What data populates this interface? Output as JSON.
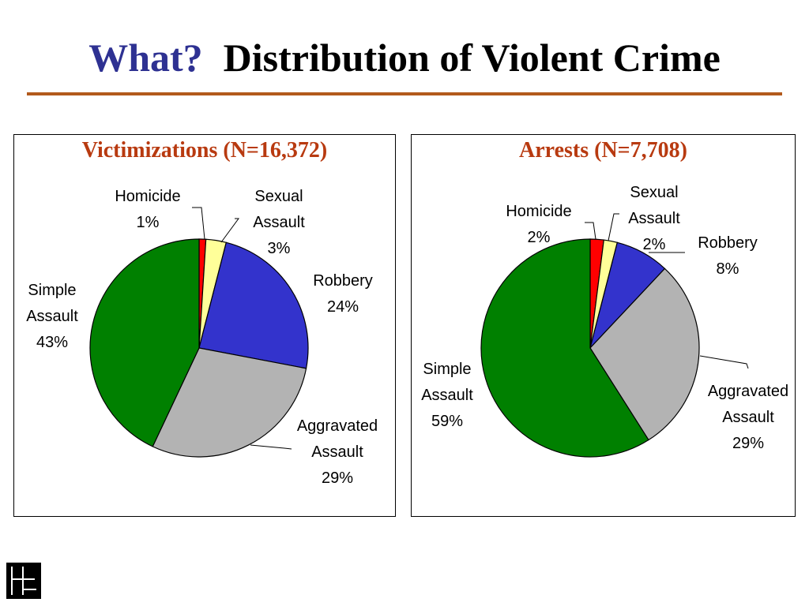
{
  "slide": {
    "title_question": "What?",
    "title_text": "Distribution of Violent Crime"
  },
  "colors": {
    "title_question": "#2e3192",
    "rule": "#b25a1c",
    "panel_title": "#b83a10"
  },
  "chart_data": [
    {
      "type": "pie",
      "title": "Victimizations  (N=16,372)",
      "slices": [
        {
          "label": "Homicide",
          "value": 1,
          "value_label": "1%",
          "color": "#ff0000"
        },
        {
          "label": "Sexual Assault",
          "value": 3,
          "value_label": "3%",
          "color": "#ffff99"
        },
        {
          "label": "Robbery",
          "value": 24,
          "value_label": "24%",
          "color": "#3333cc"
        },
        {
          "label": "Aggravated Assault",
          "value": 29,
          "value_label": "29%",
          "color": "#b3b3b3"
        },
        {
          "label": "Simple Assault",
          "value": 43,
          "value_label": "43%",
          "color": "#008000"
        }
      ]
    },
    {
      "type": "pie",
      "title": "Arrests  (N=7,708)",
      "slices": [
        {
          "label": "Homicide",
          "value": 2,
          "value_label": "2%",
          "color": "#ff0000"
        },
        {
          "label": "Sexual Assault",
          "value": 2,
          "value_label": "2%",
          "color": "#ffff99"
        },
        {
          "label": "Robbery",
          "value": 8,
          "value_label": "8%",
          "color": "#3333cc"
        },
        {
          "label": "Aggravated Assault",
          "value": 29,
          "value_label": "29%",
          "color": "#b3b3b3"
        },
        {
          "label": "Simple Assault",
          "value": 59,
          "value_label": "59%",
          "color": "#008000"
        }
      ]
    }
  ]
}
